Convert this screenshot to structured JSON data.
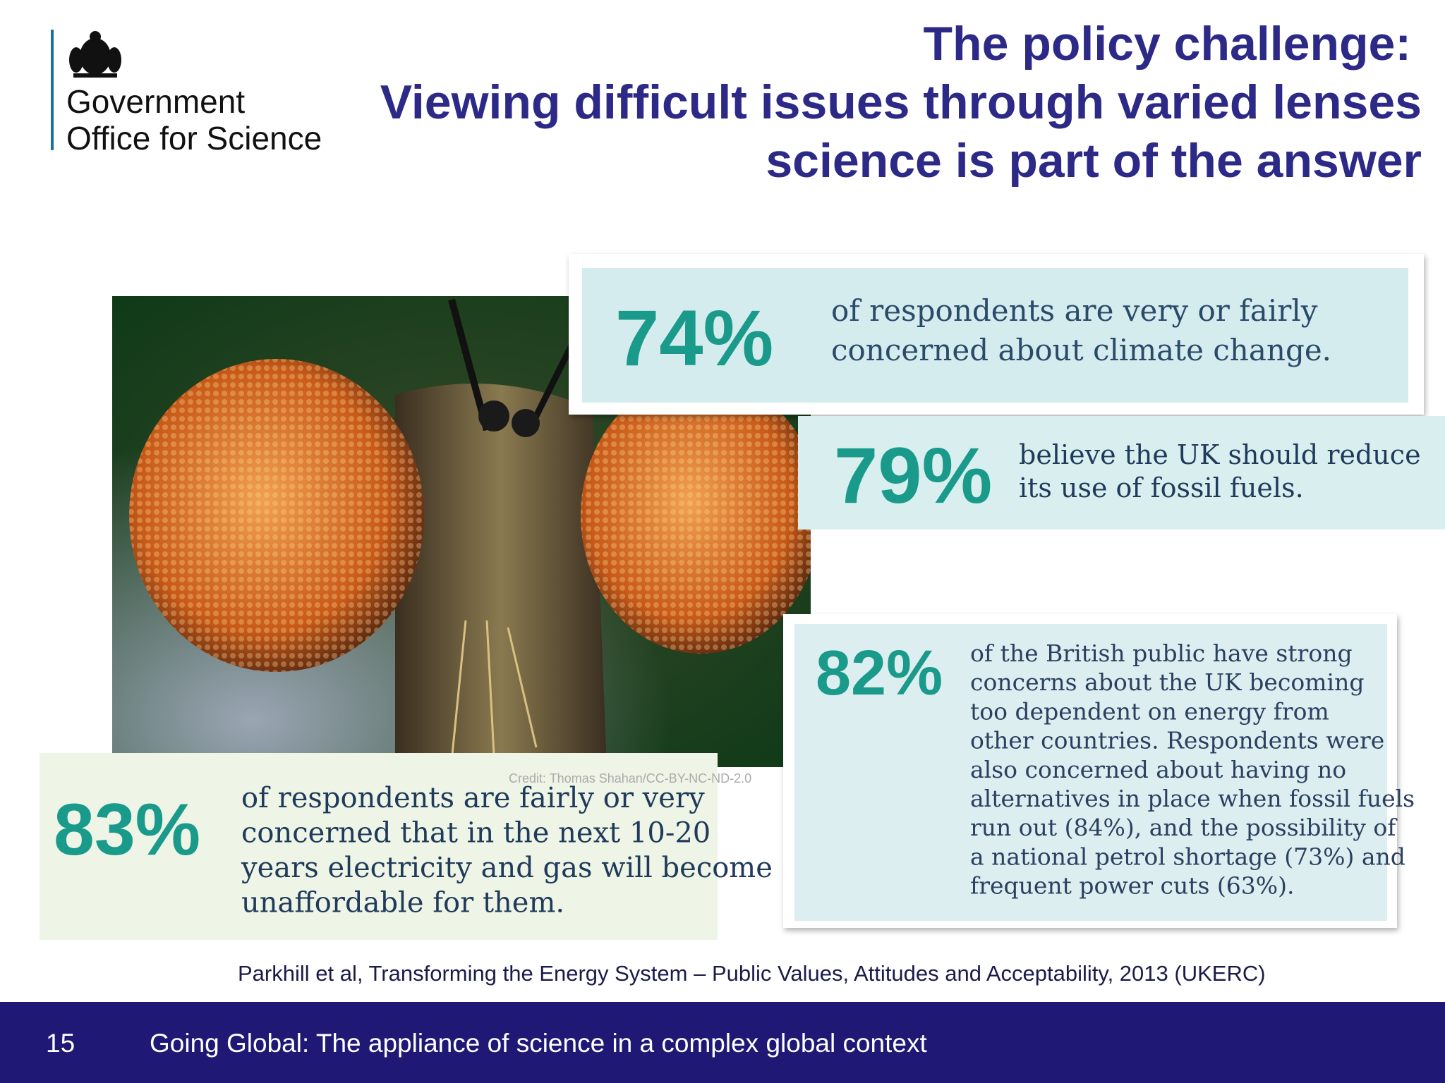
{
  "header": {
    "logo_lines": [
      "Government",
      "Office for Science"
    ],
    "title_lines": [
      "The policy challenge:",
      "Viewing difficult issues through varied lenses",
      "science is part of the answer"
    ]
  },
  "stats": [
    {
      "value": "74%",
      "lines": [
        "of respondents are very or fairly",
        "concerned about climate change."
      ]
    },
    {
      "value": "79%",
      "lines": [
        "believe the UK should reduce",
        "its use of fossil fuels."
      ]
    },
    {
      "value": "82%",
      "lines": [
        "of the British public have strong",
        "concerns about the UK becoming",
        "too dependent on energy from",
        "other countries. Respondents were",
        "also concerned about having no",
        "alternatives in place when fossil fuels",
        "run out (84%), and the possibility of",
        "a national petrol shortage (73%) and",
        "frequent power cuts (63%)."
      ]
    },
    {
      "value": "83%",
      "lines": [
        "of respondents are fairly or very",
        "concerned that in the next 10-20",
        "years electricity and gas will become",
        "unaffordable for them."
      ]
    }
  ],
  "credit": "Credit: Thomas Shahan/CC-BY-NC-ND-2.0",
  "citation": "Parkhill et al, Transforming the Energy System – Public Values, Attitudes and Acceptability, 2013 (UKERC)",
  "footer": {
    "page": "15",
    "text": "Going Global: The appliance of science in a complex global context"
  }
}
